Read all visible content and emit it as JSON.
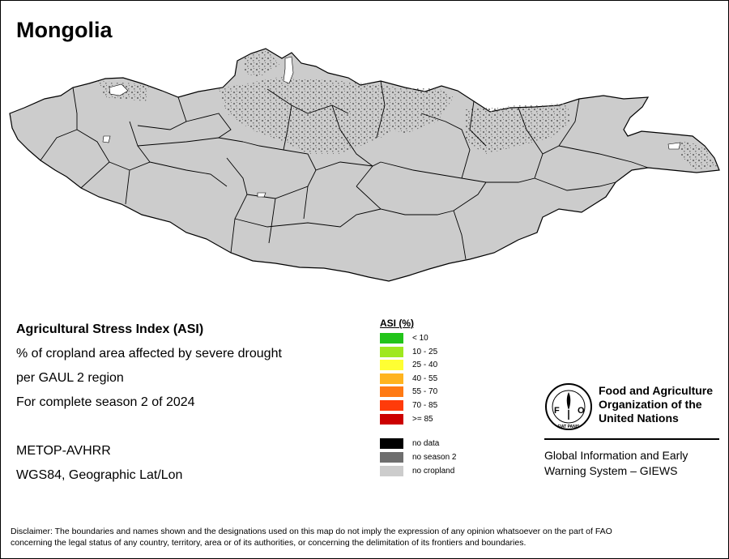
{
  "title": "Mongolia",
  "map": {
    "country": "Mongolia",
    "fill_color": "#cccccc",
    "border_color": "#000000",
    "cropland_stipple_color": "#666666",
    "lake_color": "#ffffff"
  },
  "info": {
    "line1": "Agricultural Stress Index (ASI)",
    "line2": "% of cropland area affected by severe drought",
    "line3": "per GAUL 2 region",
    "line4": "For complete season 2 of 2024",
    "sensor": "METOP-AVHRR",
    "projection": "WGS84, Geographic Lat/Lon"
  },
  "legend": {
    "title": "ASI (%)",
    "classes": [
      {
        "label": "< 10",
        "color": "#22c41a"
      },
      {
        "label": "10 - 25",
        "color": "#9fe81f"
      },
      {
        "label": "25 - 40",
        "color": "#ffff33"
      },
      {
        "label": "40 - 55",
        "color": "#ffb41f"
      },
      {
        "label": "55 - 70",
        "color": "#ff7a14"
      },
      {
        "label": "70 - 85",
        "color": "#ff3b0a"
      },
      {
        "label": ">= 85",
        "color": "#cc0000"
      }
    ],
    "other": [
      {
        "label": "no data",
        "color": "#000000"
      },
      {
        "label": "no season 2",
        "color": "#6e6e6e"
      },
      {
        "label": "no cropland",
        "color": "#cccccc"
      }
    ]
  },
  "fao": {
    "logo_letters": "FAO",
    "logo_motto": "FIAT PANIS",
    "name_line1": "Food and Agriculture",
    "name_line2": "Organization of the",
    "name_line3": "United Nations",
    "giews_line1": "Global Information and Early",
    "giews_line2": "Warning System – GIEWS"
  },
  "disclaimer_line1": "Disclaimer: The boundaries and names shown and the designations used on this map do not imply the expression of any opinion whatsoever on the part of FAO",
  "disclaimer_line2": "concerning the legal status of any country, territory, area or of its authorities, or concerning the delimitation of its frontiers and boundaries."
}
